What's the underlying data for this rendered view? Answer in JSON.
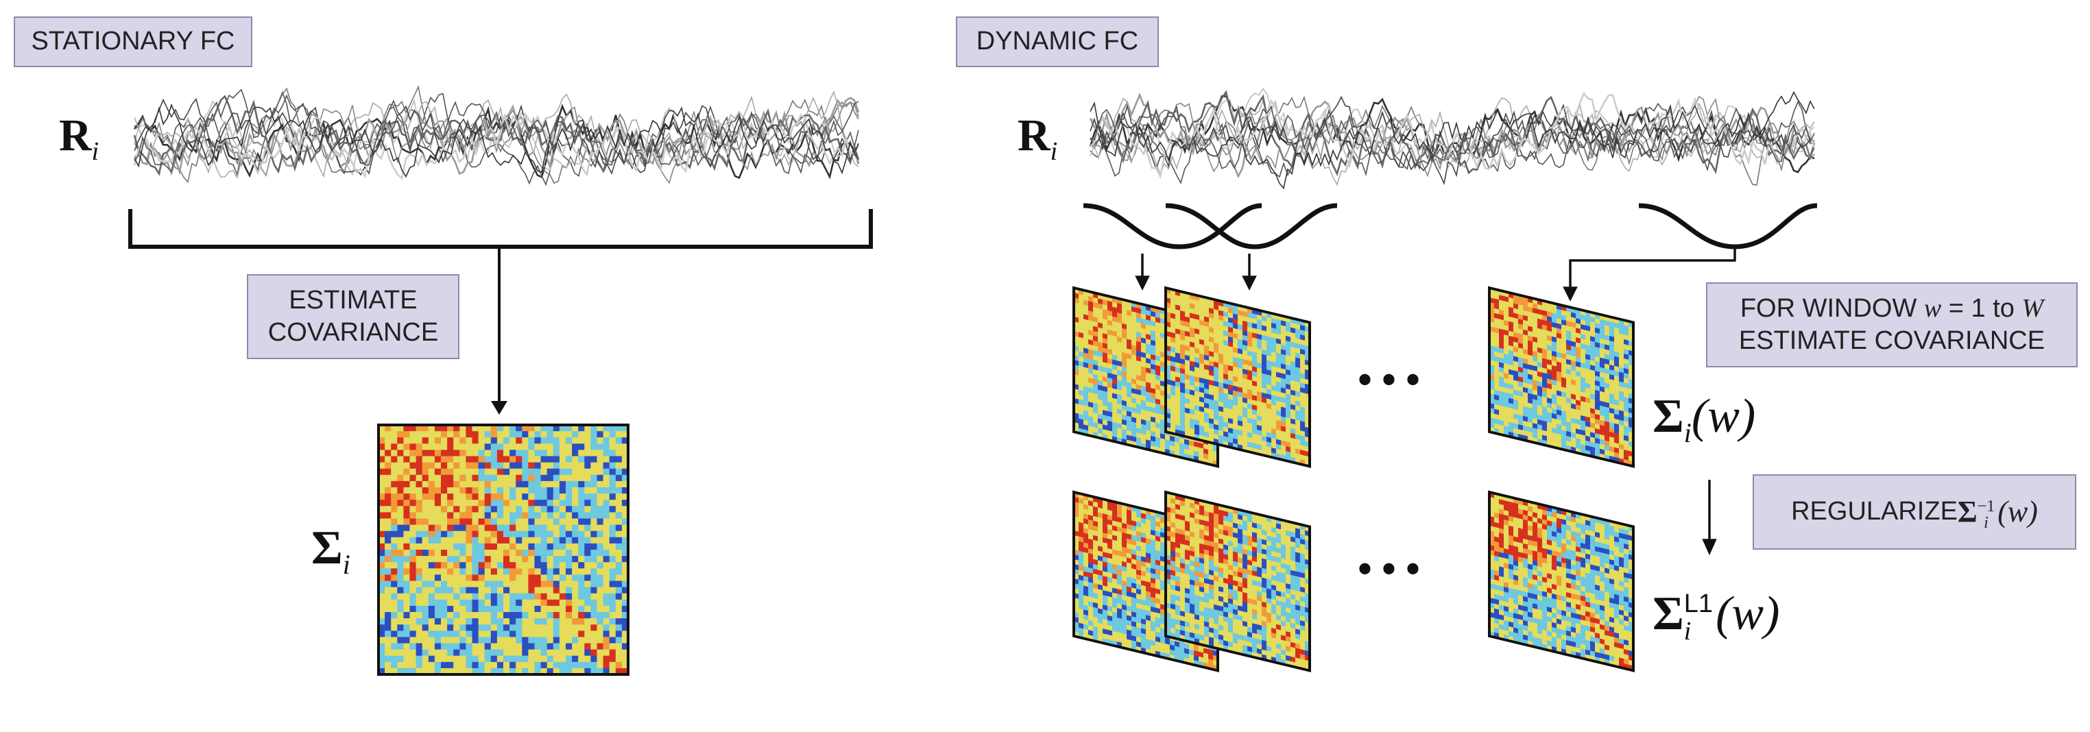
{
  "colors": {
    "box_fill": "#d9d4e8",
    "box_border": "#8f88ad",
    "heatmap_low": "#2b4fc1",
    "heatmap_mid": "#6ec8e0",
    "heatmap_high": "#d7301f",
    "heatmap_neutral": "#e4dc5a"
  },
  "left_panel": {
    "header": "STATIONARY FC",
    "series_label": {
      "symbol": "R",
      "subscript": "i"
    },
    "step_line1": "ESTIMATE",
    "step_line2": "COVARIANCE",
    "matrix_label": {
      "symbol": "Σ",
      "subscript": "i"
    }
  },
  "right_panel": {
    "header": "DYNAMIC FC",
    "series_label": {
      "symbol": "R",
      "subscript": "i"
    },
    "window_step": {
      "prefix": "FOR WINDOW ",
      "var": "w",
      "mid": " = 1 to ",
      "end": "W",
      "line2": "ESTIMATE COVARIANCE"
    },
    "regularize_step": {
      "prefix": "REGULARIZE ",
      "symbol": "Σ",
      "subscript": "i",
      "superscript": "−1",
      "arg": "(w)"
    },
    "matrix_label": {
      "symbol": "Σ",
      "subscript": "i",
      "arg": "(w)"
    },
    "regularized_label": {
      "symbol": "Σ",
      "subscript": "i",
      "superscript": "L1",
      "arg": "(w)"
    },
    "ellipsis": "•••"
  }
}
